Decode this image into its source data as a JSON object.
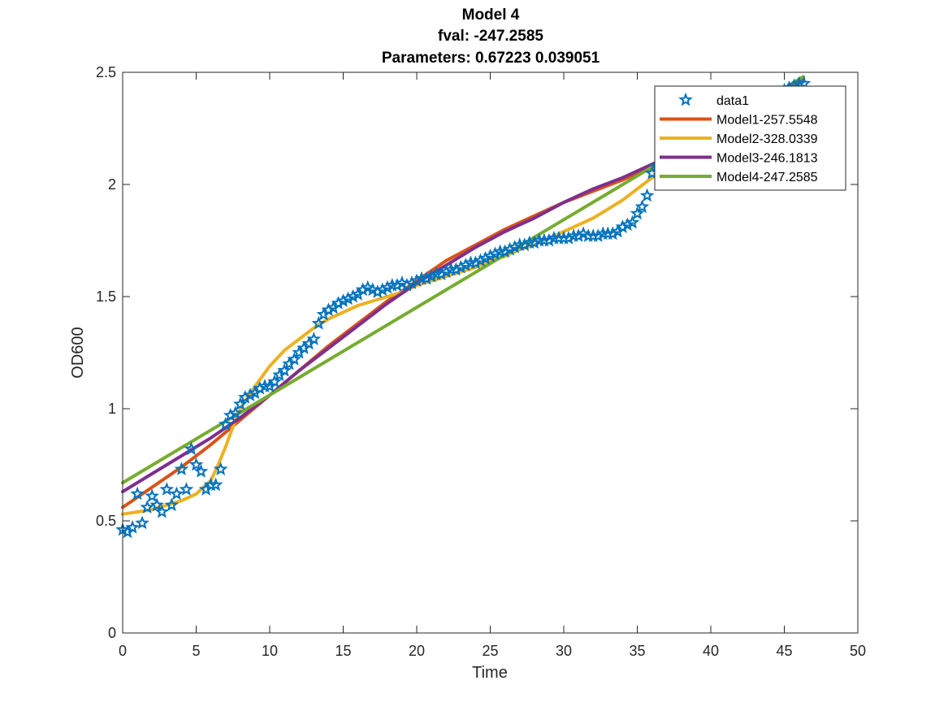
{
  "chart_data": {
    "type": "line",
    "title": [
      "Model 4",
      "fval: -247.2585",
      "Parameters: 0.67223    0.039051"
    ],
    "xlabel": "Time",
    "ylabel": "OD600",
    "xlim": [
      0,
      50
    ],
    "ylim": [
      0,
      2.5
    ],
    "xticks": [
      "0",
      "5",
      "10",
      "15",
      "20",
      "25",
      "30",
      "35",
      "40",
      "45",
      "50"
    ],
    "yticks": [
      "0",
      "0.5",
      "1",
      "1.5",
      "2",
      "2.5"
    ],
    "legend_position": "top-right",
    "grid": false,
    "colors": {
      "data1": "#0072BD",
      "Model1": "#D95319",
      "Model2": "#EDB120",
      "Model3": "#7E2F8E",
      "Model4": "#77AC30"
    },
    "data_series": {
      "name": "data1",
      "marker": "pentagram",
      "x": [
        0.0,
        0.33,
        0.67,
        1.0,
        1.33,
        1.67,
        2.0,
        2.33,
        2.67,
        3.0,
        3.33,
        3.67,
        4.0,
        4.33,
        4.67,
        5.0,
        5.33,
        5.67,
        6.0,
        6.33,
        6.67,
        7.0,
        7.33,
        7.67,
        8.0,
        8.33,
        8.67,
        9.0,
        9.33,
        9.67,
        10.0,
        10.33,
        10.67,
        11.0,
        11.33,
        11.67,
        12.0,
        12.33,
        12.67,
        13.0,
        13.33,
        13.67,
        14.0,
        14.33,
        14.67,
        15.0,
        15.33,
        15.67,
        16.0,
        16.33,
        16.67,
        17.0,
        17.33,
        17.67,
        18.0,
        18.33,
        18.67,
        19.0,
        19.33,
        19.67,
        20.0,
        20.33,
        20.67,
        21.0,
        21.33,
        21.67,
        22.0,
        22.33,
        22.67,
        23.0,
        23.33,
        23.67,
        24.0,
        24.33,
        24.67,
        25.0,
        25.33,
        25.67,
        26.0,
        26.33,
        26.67,
        27.0,
        27.33,
        27.67,
        28.0,
        28.33,
        28.67,
        29.0,
        29.33,
        29.67,
        30.0,
        30.33,
        30.67,
        31.0,
        31.33,
        31.67,
        32.0,
        32.33,
        32.67,
        33.0,
        33.33,
        33.67,
        34.0,
        34.33,
        34.67,
        35.0,
        35.33,
        35.67,
        36.0,
        36.33,
        36.67,
        37.0,
        37.33,
        37.67,
        38.0,
        38.33,
        38.67,
        39.0,
        39.33,
        39.67,
        40.0,
        40.33,
        40.67,
        41.0,
        41.33,
        41.67,
        42.0,
        42.33,
        42.67,
        43.0,
        43.33,
        43.67,
        44.0,
        44.33,
        44.67,
        45.0,
        45.33,
        45.67,
        46.0,
        46.33
      ],
      "y": [
        0.46,
        0.45,
        0.47,
        0.62,
        0.49,
        0.56,
        0.61,
        0.57,
        0.54,
        0.64,
        0.57,
        0.62,
        0.73,
        0.64,
        0.82,
        0.75,
        0.72,
        0.64,
        0.66,
        0.66,
        0.73,
        0.93,
        0.97,
        0.98,
        1.02,
        1.05,
        1.06,
        1.07,
        1.09,
        1.1,
        1.1,
        1.12,
        1.15,
        1.17,
        1.2,
        1.22,
        1.25,
        1.27,
        1.29,
        1.31,
        1.38,
        1.42,
        1.44,
        1.45,
        1.47,
        1.48,
        1.49,
        1.5,
        1.51,
        1.53,
        1.54,
        1.53,
        1.52,
        1.53,
        1.54,
        1.55,
        1.55,
        1.56,
        1.55,
        1.56,
        1.57,
        1.58,
        1.58,
        1.59,
        1.6,
        1.6,
        1.61,
        1.62,
        1.62,
        1.63,
        1.64,
        1.65,
        1.65,
        1.66,
        1.67,
        1.68,
        1.69,
        1.7,
        1.7,
        1.71,
        1.72,
        1.73,
        1.73,
        1.74,
        1.74,
        1.75,
        1.75,
        1.75,
        1.76,
        1.76,
        1.76,
        1.76,
        1.77,
        1.77,
        1.78,
        1.77,
        1.77,
        1.77,
        1.78,
        1.78,
        1.78,
        1.79,
        1.81,
        1.82,
        1.83,
        1.87,
        1.9,
        1.95,
        2.05,
        2.08,
        2.2,
        2.18,
        2.2,
        2.2,
        2.21,
        2.22,
        2.23,
        2.24,
        2.25,
        2.26,
        2.27,
        2.28,
        2.29,
        2.3,
        2.31,
        2.32,
        2.33,
        2.34,
        2.35,
        2.36,
        2.37,
        2.38,
        2.39,
        2.4,
        2.41,
        2.42,
        2.43,
        2.44,
        2.45,
        2.45
      ]
    },
    "series": [
      {
        "name": "Model1-257.5548",
        "x": [
          0,
          2,
          4,
          6,
          8,
          10,
          12,
          14,
          16,
          18,
          20,
          22,
          24,
          26,
          28,
          30,
          32,
          34,
          36,
          38,
          40,
          42,
          44,
          46.3
        ],
        "y": [
          0.56,
          0.65,
          0.74,
          0.84,
          0.95,
          1.06,
          1.17,
          1.28,
          1.38,
          1.48,
          1.57,
          1.66,
          1.73,
          1.8,
          1.86,
          1.92,
          1.97,
          2.02,
          2.08,
          2.15,
          2.23,
          2.31,
          2.38,
          2.47
        ]
      },
      {
        "name": "Model2-328.0339",
        "x": [
          0,
          1,
          2,
          3,
          4,
          5,
          6,
          6.5,
          7,
          7.5,
          8,
          8.5,
          9,
          10,
          11,
          12,
          13,
          14,
          15,
          16,
          17,
          18,
          19,
          20,
          21,
          22,
          23,
          24,
          25,
          26,
          27,
          28,
          29,
          30,
          31,
          32,
          33,
          34,
          35,
          36,
          38,
          40,
          42,
          44,
          46.3
        ],
        "y": [
          0.53,
          0.54,
          0.55,
          0.57,
          0.59,
          0.62,
          0.68,
          0.75,
          0.83,
          0.92,
          1.0,
          1.05,
          1.1,
          1.19,
          1.26,
          1.31,
          1.36,
          1.4,
          1.43,
          1.46,
          1.48,
          1.5,
          1.52,
          1.55,
          1.57,
          1.59,
          1.61,
          1.63,
          1.66,
          1.68,
          1.71,
          1.73,
          1.76,
          1.79,
          1.82,
          1.85,
          1.89,
          1.93,
          1.98,
          2.03,
          2.1,
          2.17,
          2.26,
          2.35,
          2.44
        ]
      },
      {
        "name": "Model3-246.1813",
        "x": [
          0,
          2,
          4,
          6,
          8,
          10,
          12,
          14,
          16,
          18,
          20,
          22,
          24,
          26,
          28,
          30,
          32,
          34,
          36,
          38,
          40,
          42,
          44,
          46.3
        ],
        "y": [
          0.63,
          0.71,
          0.79,
          0.87,
          0.96,
          1.06,
          1.17,
          1.27,
          1.37,
          1.47,
          1.56,
          1.64,
          1.72,
          1.79,
          1.85,
          1.92,
          1.98,
          2.03,
          2.09,
          2.15,
          2.22,
          2.3,
          2.39,
          2.48
        ]
      },
      {
        "name": "Model4-247.2585",
        "x": [
          0,
          46.3
        ],
        "y": [
          0.67,
          2.48
        ]
      }
    ]
  }
}
